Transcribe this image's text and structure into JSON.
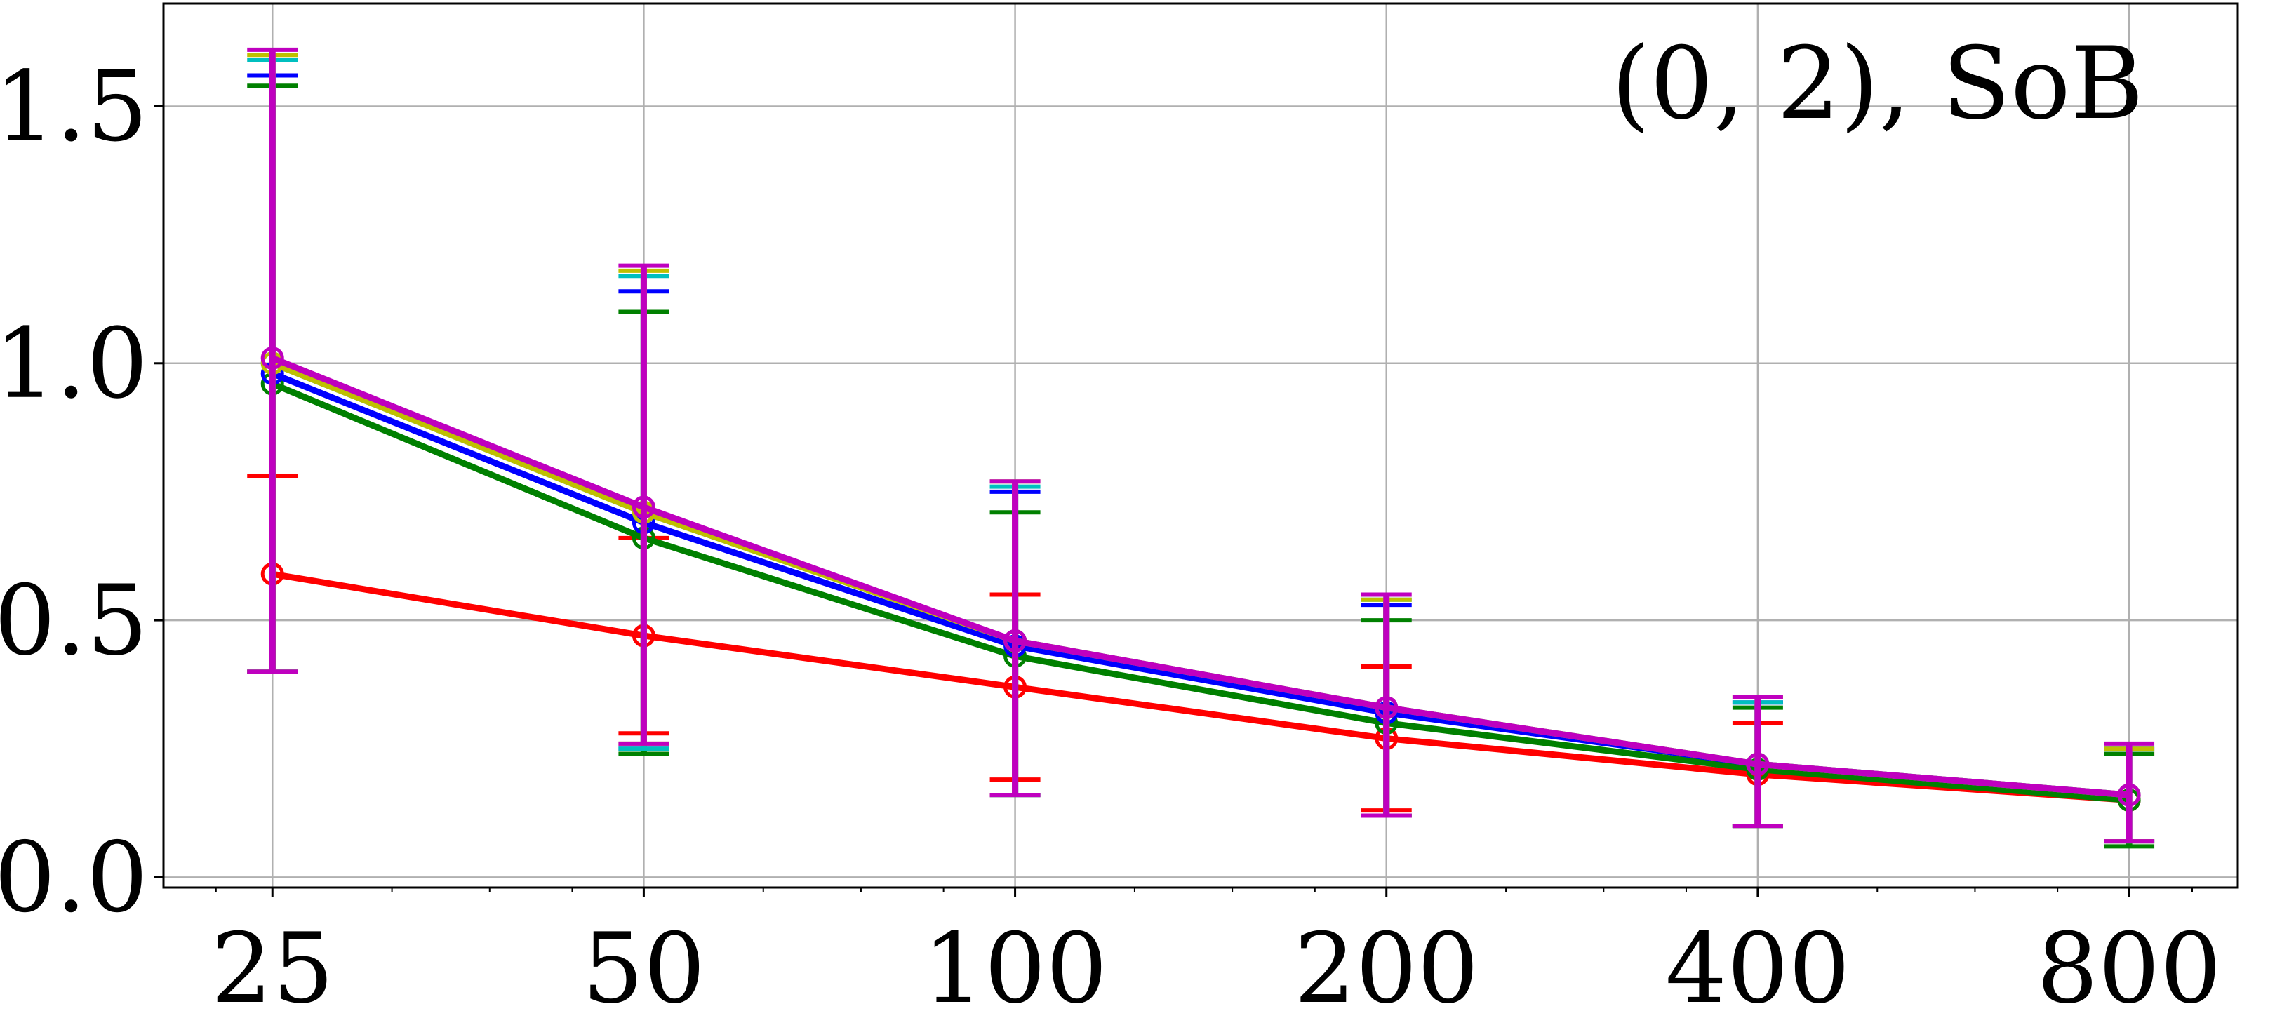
{
  "chart_data": {
    "type": "line",
    "title": "",
    "xlabel": "",
    "ylabel": "",
    "annotation": "(0, 2), SoB",
    "x_scale": "log2",
    "x": [
      25,
      50,
      100,
      200,
      400,
      800
    ],
    "xtick_labels": [
      "25",
      "50",
      "100",
      "200",
      "400",
      "800"
    ],
    "ytick_values": [
      0.0,
      0.5,
      1.0,
      1.5
    ],
    "ytick_labels": [
      "0.0",
      "0.5",
      "1.0",
      "1.5"
    ],
    "ylim": [
      -0.02,
      1.7
    ],
    "xlim": [
      20.4,
      980
    ],
    "grid": true,
    "legend": "none",
    "series": [
      {
        "color": "#ff0000",
        "y": [
          0.59,
          0.47,
          0.37,
          0.27,
          0.2,
          0.15
        ],
        "err_lo": [
          0.4,
          0.28,
          0.19,
          0.13,
          0.1,
          0.07
        ],
        "err_hi": [
          0.78,
          0.66,
          0.55,
          0.41,
          0.3,
          0.24
        ]
      },
      {
        "color": "#008000",
        "y": [
          0.96,
          0.66,
          0.43,
          0.3,
          0.21,
          0.15
        ],
        "err_lo": [
          0.4,
          0.24,
          0.16,
          0.12,
          0.1,
          0.06
        ],
        "err_hi": [
          1.54,
          1.1,
          0.71,
          0.5,
          0.33,
          0.24
        ]
      },
      {
        "color": "#0000ff",
        "y": [
          0.98,
          0.69,
          0.45,
          0.32,
          0.22,
          0.16
        ],
        "err_lo": [
          0.4,
          0.25,
          0.16,
          0.12,
          0.1,
          0.07
        ],
        "err_hi": [
          1.56,
          1.14,
          0.75,
          0.53,
          0.34,
          0.25
        ]
      },
      {
        "color": "#00bfbf",
        "y": [
          1.0,
          0.71,
          0.46,
          0.33,
          0.22,
          0.16
        ],
        "err_lo": [
          0.4,
          0.25,
          0.16,
          0.12,
          0.1,
          0.07
        ],
        "err_hi": [
          1.59,
          1.17,
          0.76,
          0.54,
          0.34,
          0.25
        ]
      },
      {
        "color": "#bfbf00",
        "y": [
          1.0,
          0.71,
          0.46,
          0.33,
          0.22,
          0.16
        ],
        "err_lo": [
          0.4,
          0.26,
          0.16,
          0.12,
          0.1,
          0.07
        ],
        "err_hi": [
          1.6,
          1.18,
          0.77,
          0.54,
          0.35,
          0.25
        ]
      },
      {
        "color": "#bf00bf",
        "y": [
          1.01,
          0.72,
          0.46,
          0.33,
          0.22,
          0.16
        ],
        "err_lo": [
          0.4,
          0.26,
          0.16,
          0.12,
          0.1,
          0.07
        ],
        "err_hi": [
          1.61,
          1.19,
          0.77,
          0.55,
          0.35,
          0.26
        ]
      }
    ]
  }
}
